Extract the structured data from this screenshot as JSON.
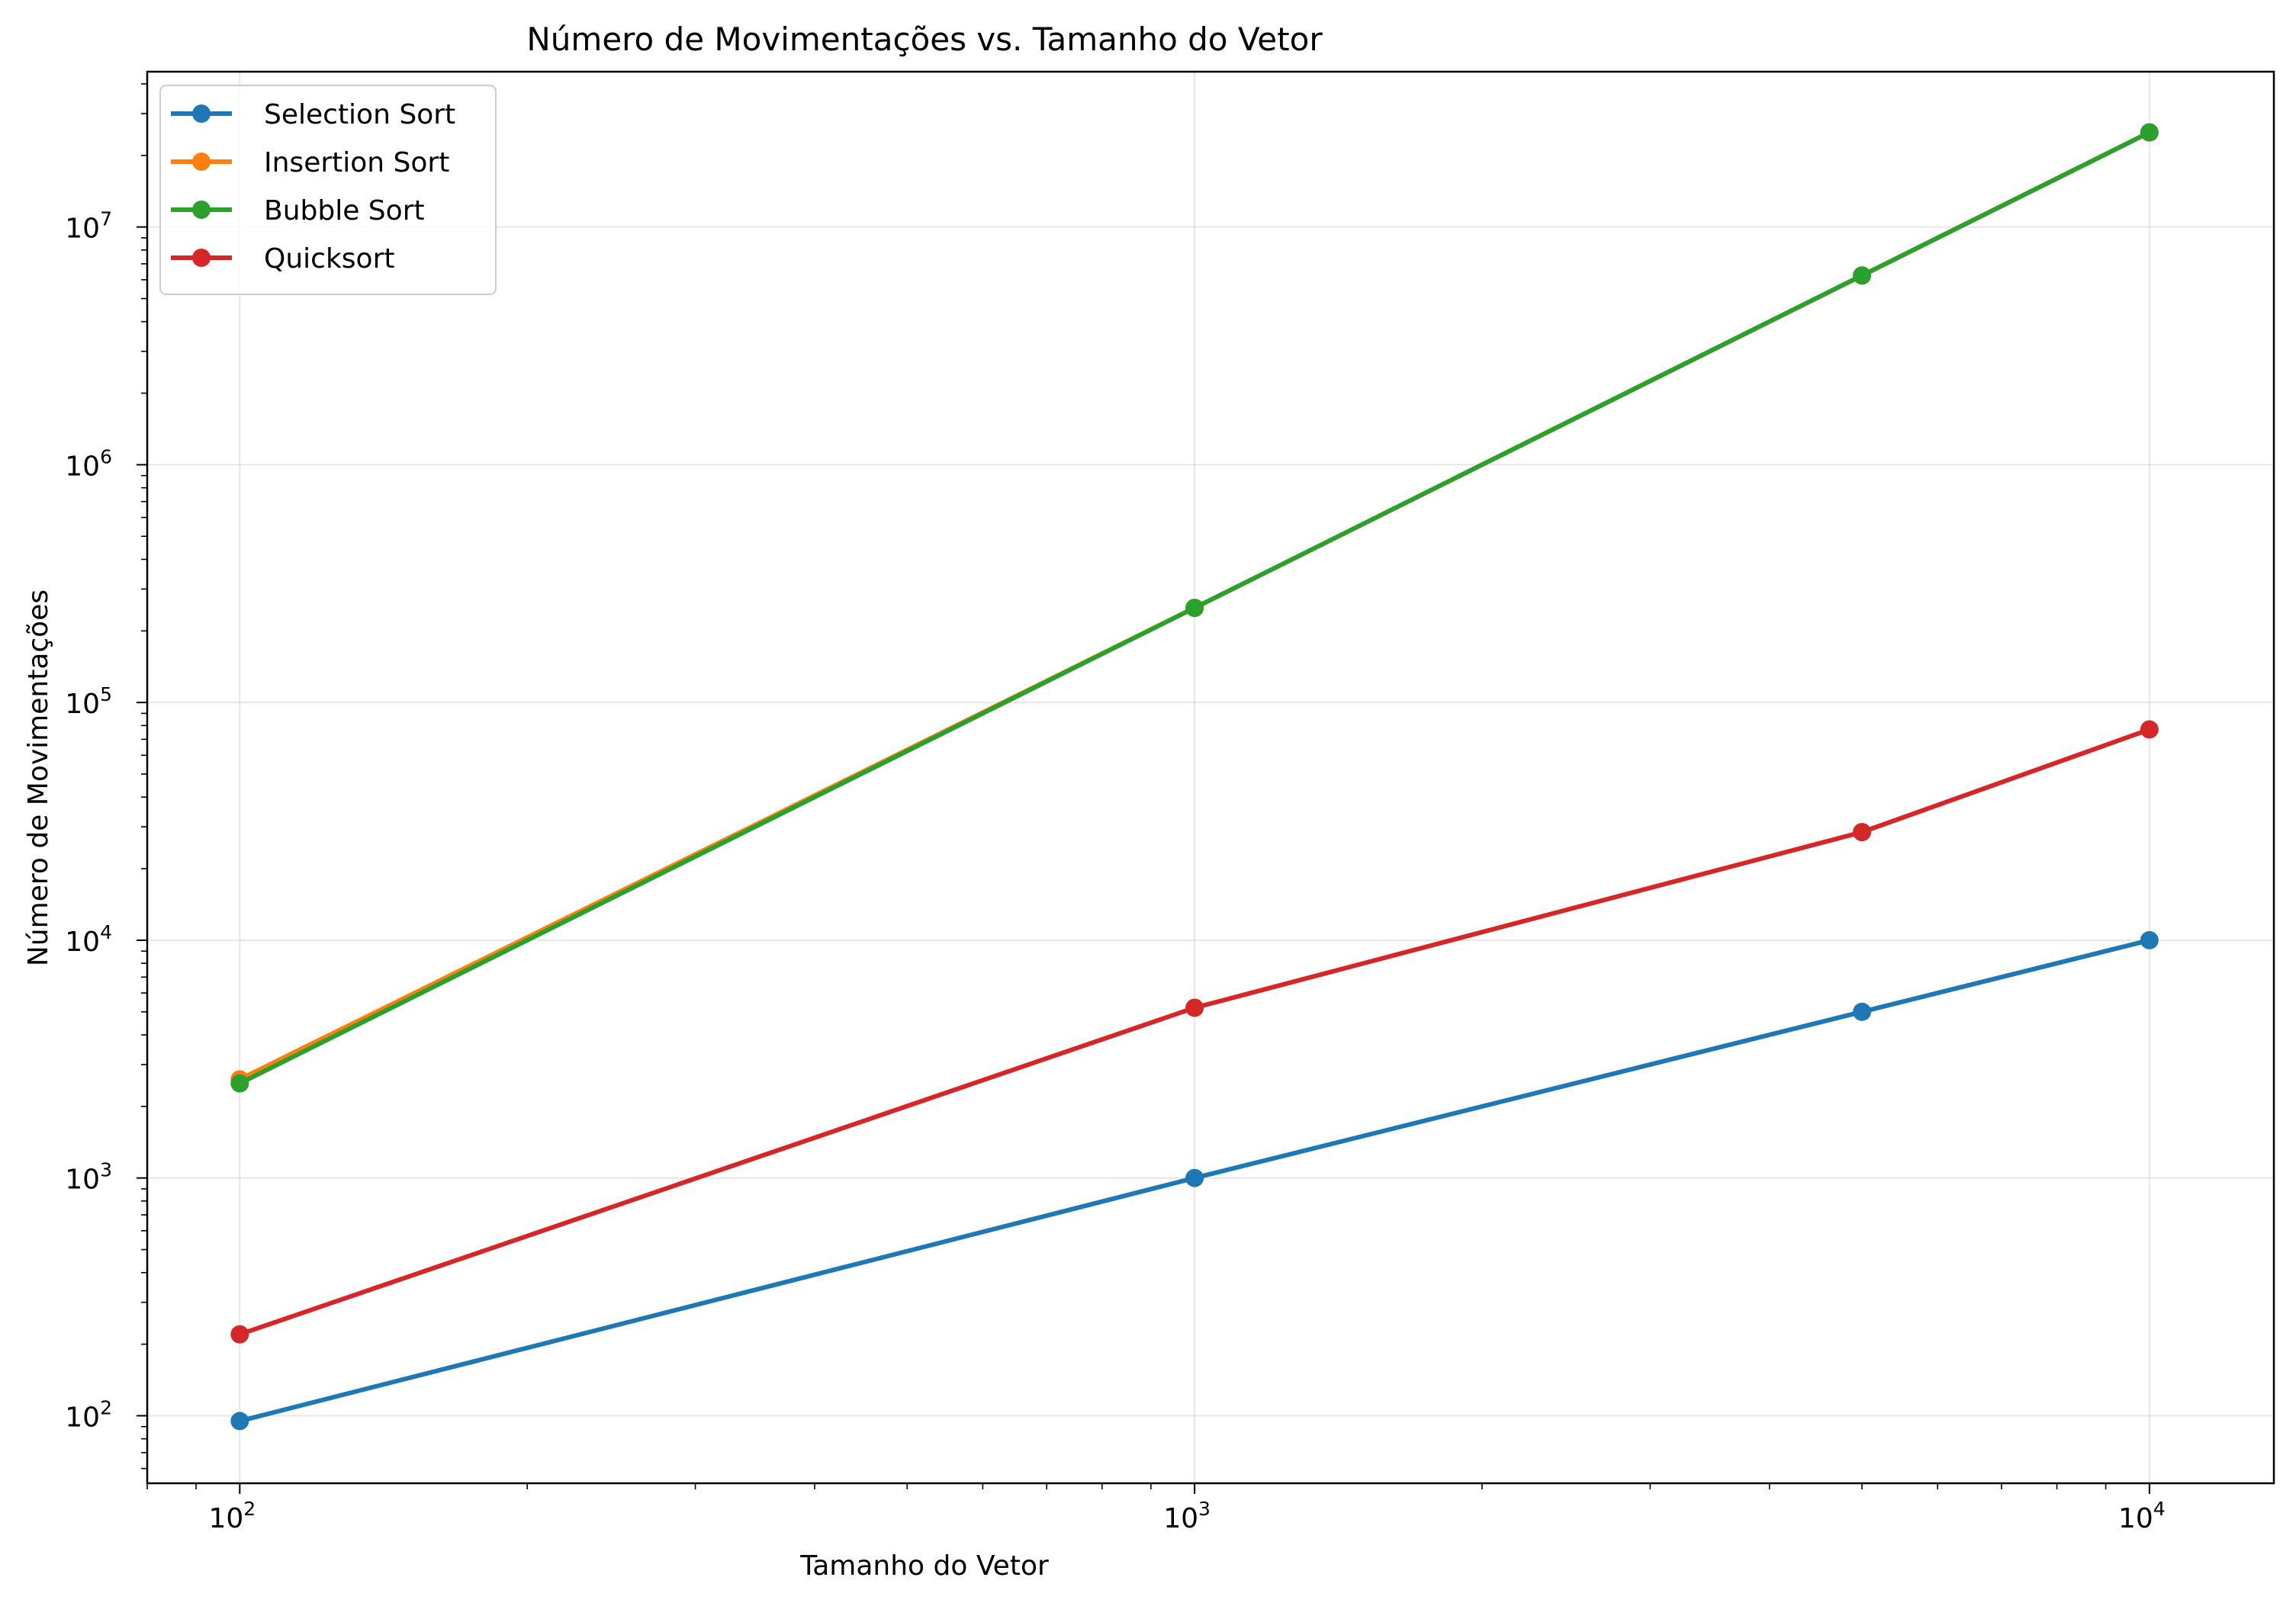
{
  "chart_data": {
    "type": "line",
    "title": "Número de Movimentações vs. Tamanho do Vetor",
    "xlabel": "Tamanho do Vetor",
    "ylabel": "Número de Movimentações",
    "x_scale": "log",
    "y_scale": "log",
    "xlim": [
      80,
      13500
    ],
    "ylim": [
      52,
      45000000
    ],
    "grid": true,
    "legend_position": "top-left",
    "x_ticks": [
      {
        "value": 100,
        "base": "10",
        "exp": "2"
      },
      {
        "value": 1000,
        "base": "10",
        "exp": "3"
      },
      {
        "value": 10000,
        "base": "10",
        "exp": "4"
      }
    ],
    "y_ticks": [
      {
        "value": 100,
        "base": "10",
        "exp": "2"
      },
      {
        "value": 1000,
        "base": "10",
        "exp": "3"
      },
      {
        "value": 10000,
        "base": "10",
        "exp": "4"
      },
      {
        "value": 100000,
        "base": "10",
        "exp": "5"
      },
      {
        "value": 1000000,
        "base": "10",
        "exp": "6"
      },
      {
        "value": 10000000,
        "base": "10",
        "exp": "7"
      }
    ],
    "x": [
      100,
      1000,
      5000,
      10000
    ],
    "series": [
      {
        "name": "Selection Sort",
        "color": "#1f77b4",
        "values": [
          95,
          1000,
          5000,
          10000
        ]
      },
      {
        "name": "Insertion Sort",
        "color": "#ff7f0e",
        "values": [
          2600,
          250000,
          6250000,
          25000000
        ]
      },
      {
        "name": "Bubble Sort",
        "color": "#2ca02c",
        "values": [
          2500,
          250000,
          6250000,
          25000000
        ]
      },
      {
        "name": "Quicksort",
        "color": "#d62728",
        "values": [
          220,
          5200,
          28500,
          77000
        ]
      }
    ]
  }
}
